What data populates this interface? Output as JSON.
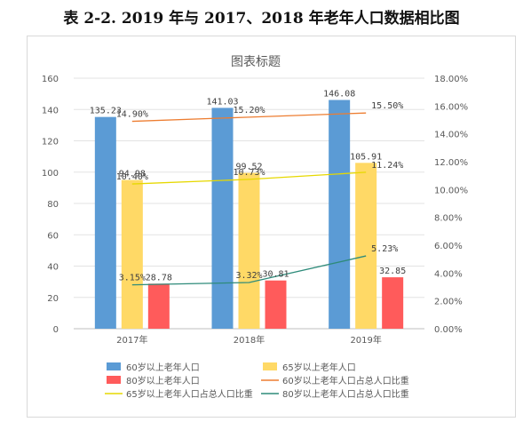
{
  "page": {
    "title": "表 2-2. 2019 年与 2017、2018 年老年人口数据相比图"
  },
  "chart_data": {
    "type": "bar",
    "title": "图表标题",
    "categories": [
      "2017年",
      "2018年",
      "2019年"
    ],
    "ylim": [
      0,
      160
    ],
    "y_ticks": [
      "0",
      "20",
      "40",
      "60",
      "80",
      "100",
      "120",
      "140",
      "160"
    ],
    "y2lim": [
      0,
      18
    ],
    "y2_ticks": [
      "0.00%",
      "2.00%",
      "4.00%",
      "6.00%",
      "8.00%",
      "10.00%",
      "12.00%",
      "14.00%",
      "16.00%",
      "18.00%"
    ],
    "legend_placement": "bottom",
    "series": [
      {
        "name": "60岁以上老年人口",
        "kind": "bar",
        "axis": "left",
        "color": "#5b9bd5",
        "values": [
          135.23,
          141.03,
          146.08
        ],
        "labels": [
          "135.23",
          "141.03",
          "146.08"
        ]
      },
      {
        "name": "65岁以上老年人口",
        "kind": "bar",
        "axis": "left",
        "color": "#ffd966",
        "values": [
          94.98,
          99.52,
          105.91
        ],
        "labels": [
          "94.98",
          "99.52",
          "105.91"
        ]
      },
      {
        "name": "80岁以上老年人口",
        "kind": "bar",
        "axis": "left",
        "color": "#ff5b5b",
        "values": [
          28.78,
          30.81,
          32.85
        ],
        "labels": [
          "28.78",
          "30.81",
          "32.85"
        ]
      },
      {
        "name": "60岁以上老年人口占总人口比重",
        "kind": "line",
        "axis": "right",
        "color": "#ed7d31",
        "values": [
          14.9,
          15.2,
          15.5
        ],
        "labels": [
          "14.90%",
          "15.20%",
          "15.50%"
        ]
      },
      {
        "name": "65岁以上老年人口占总人口比重",
        "kind": "line",
        "axis": "right",
        "color": "#e6d800",
        "values": [
          10.4,
          10.73,
          11.24
        ],
        "labels": [
          "10.40%",
          "10.73%",
          "11.24%"
        ]
      },
      {
        "name": "80岁以上老年人口占总人口比重",
        "kind": "line",
        "axis": "right",
        "color": "#2e8b7a",
        "values": [
          3.15,
          3.32,
          5.23
        ],
        "labels": [
          "3.15%",
          "3.32%",
          "5.23%"
        ]
      }
    ]
  }
}
